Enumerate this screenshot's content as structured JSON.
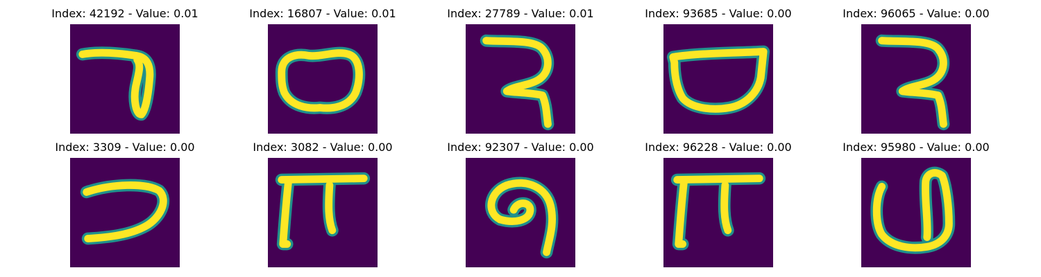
{
  "colors": {
    "background": "#440154",
    "edge": "#21918c",
    "stroke": "#fde725"
  },
  "panels": [
    {
      "label": "Index: 42192 - Value: 0.01",
      "glyph": "7-with-loop"
    },
    {
      "label": "Index: 16807 - Value: 0.01",
      "glyph": "oval"
    },
    {
      "label": "Index: 27789 - Value: 0.01",
      "glyph": "double-hook"
    },
    {
      "label": "Index: 93685 - Value: 0.00",
      "glyph": "bowl"
    },
    {
      "label": "Index: 96065 - Value: 0.00",
      "glyph": "double-hook"
    },
    {
      "label": "Index: 3309 - Value: 0.00",
      "glyph": "reversed-c"
    },
    {
      "label": "Index: 3082 - Value: 0.00",
      "glyph": "pi"
    },
    {
      "label": "Index: 92307 - Value: 0.00",
      "glyph": "spiral-hook"
    },
    {
      "label": "Index: 96228 - Value: 0.00",
      "glyph": "pi"
    },
    {
      "label": "Index: 95980 - Value: 0.00",
      "glyph": "u-shape"
    }
  ]
}
